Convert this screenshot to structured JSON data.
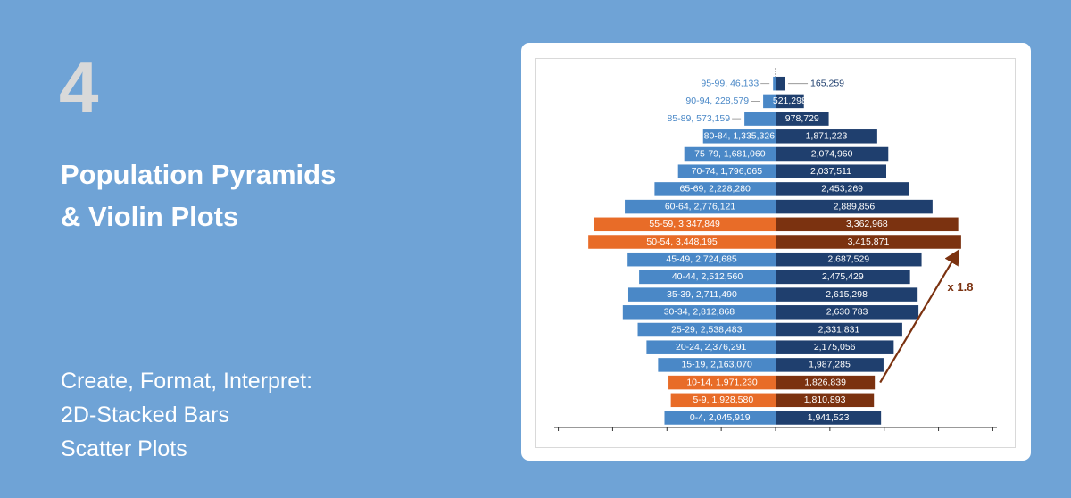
{
  "slide": {
    "number": "4",
    "title_lines": [
      "Population Pyramids",
      "& Violin Plots"
    ],
    "subtitle_lines": [
      "Create, Format, Interpret:",
      "2D-Stacked Bars",
      "Scatter Plots"
    ]
  },
  "colors": {
    "background": "#6fa3d6",
    "left_bar": "#4a88c7",
    "right_bar": "#1f3f6e",
    "left_highlight": "#e86c28",
    "right_highlight": "#7b3210",
    "annotation": "#7b3210"
  },
  "chart_data": {
    "type": "bar",
    "orientation": "horizontal",
    "layout": "population-pyramid",
    "title": "",
    "xlabel": "",
    "ylabel": "",
    "categories": [
      "0-4",
      "5-9",
      "10-14",
      "15-19",
      "20-24",
      "25-29",
      "30-34",
      "35-39",
      "40-44",
      "45-49",
      "50-54",
      "55-59",
      "60-64",
      "65-69",
      "70-74",
      "75-79",
      "80-84",
      "85-89",
      "90-94",
      "95-99"
    ],
    "series": [
      {
        "side": "left",
        "labels": [
          "0-4, 2,045,919",
          "5-9, 1,928,580",
          "10-14, 1,971,230",
          "15-19, 2,163,070",
          "20-24, 2,376,291",
          "25-29, 2,538,483",
          "30-34, 2,812,868",
          "35-39, 2,711,490",
          "40-44, 2,512,560",
          "45-49, 2,724,685",
          "50-54, 3,448,195",
          "55-59, 3,347,849",
          "60-64, 2,776,121",
          "65-69, 2,228,280",
          "70-74, 1,796,065",
          "75-79, 1,681,060",
          "80-84, 1,335,326",
          "85-89, 573,159",
          "90-94, 228,579",
          "95-99, 46,133"
        ],
        "values": [
          2045919,
          1928580,
          1971230,
          2163070,
          2376291,
          2538483,
          2812868,
          2711490,
          2512560,
          2724685,
          3448195,
          3347849,
          2776121,
          2228280,
          1796065,
          1681060,
          1335326,
          573159,
          228579,
          46133
        ]
      },
      {
        "side": "right",
        "labels": [
          "1,941,523",
          "1,810,893",
          "1,826,839",
          "1,987,285",
          "2,175,056",
          "2,331,831",
          "2,630,783",
          "2,615,298",
          "2,475,429",
          "2,687,529",
          "3,415,871",
          "3,362,968",
          "2,889,856",
          "2,453,269",
          "2,037,511",
          "2,074,960",
          "1,871,223",
          "978,729",
          "521,298",
          "165,259"
        ],
        "values": [
          1941523,
          1810893,
          1826839,
          1987285,
          2175056,
          2331831,
          2630783,
          2615298,
          2475429,
          2687529,
          3415871,
          3362968,
          2889856,
          2453269,
          2037511,
          2074960,
          1871223,
          978729,
          521298,
          165259
        ]
      }
    ],
    "highlighted_categories": [
      "5-9",
      "10-14",
      "50-54",
      "55-59"
    ],
    "xlim": [
      -4000000,
      4000000
    ],
    "annotation": {
      "text": "x 1.8",
      "from_category": "10-14",
      "to_category": "50-54"
    },
    "outside_label_categories": [
      "85-89",
      "90-94",
      "95-99"
    ]
  }
}
